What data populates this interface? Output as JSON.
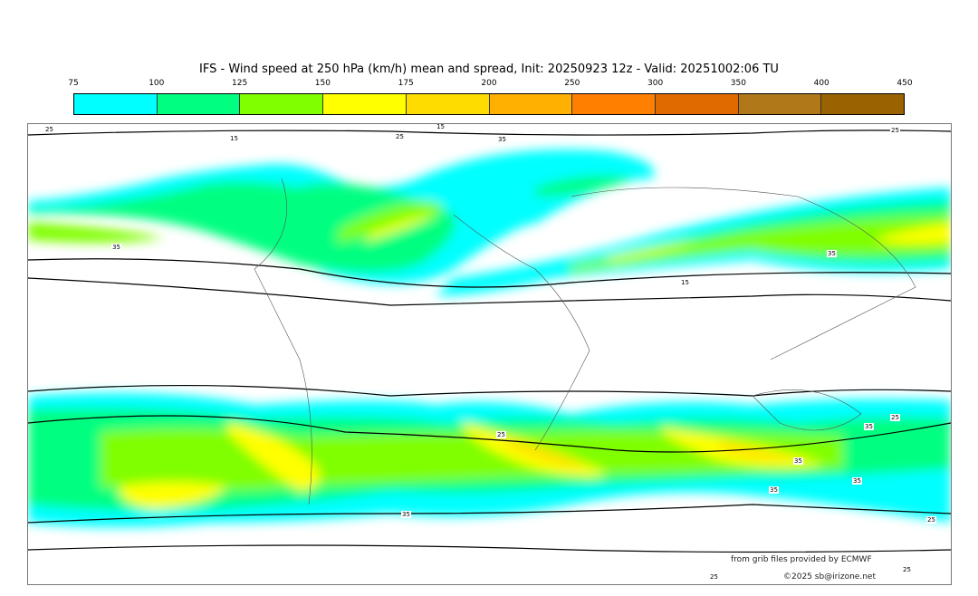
{
  "title": "IFS - Wind speed at 250 hPa (km/h) mean and spread, Init: 20250923 12z - Valid: 20251002:06 TU",
  "colorbar": {
    "ticks": [
      "75",
      "100",
      "125",
      "150",
      "175",
      "200",
      "250",
      "300",
      "350",
      "400",
      "450"
    ],
    "colors": [
      "#00ffff",
      "#00ff80",
      "#80ff00",
      "#ffff00",
      "#ffdc00",
      "#ffb000",
      "#ff8000",
      "#e06a00",
      "#b07818",
      "#9a6200"
    ]
  },
  "contour_labels": [
    "25",
    "15",
    "25",
    "35",
    "15",
    "35",
    "35",
    "15",
    "25",
    "25",
    "35",
    "35",
    "35",
    "25",
    "35",
    "25",
    "25",
    "25",
    "35"
  ],
  "credits": {
    "source": "from grib files provided by ECMWF",
    "copyright": "©2025 sb@irizone.net"
  }
}
